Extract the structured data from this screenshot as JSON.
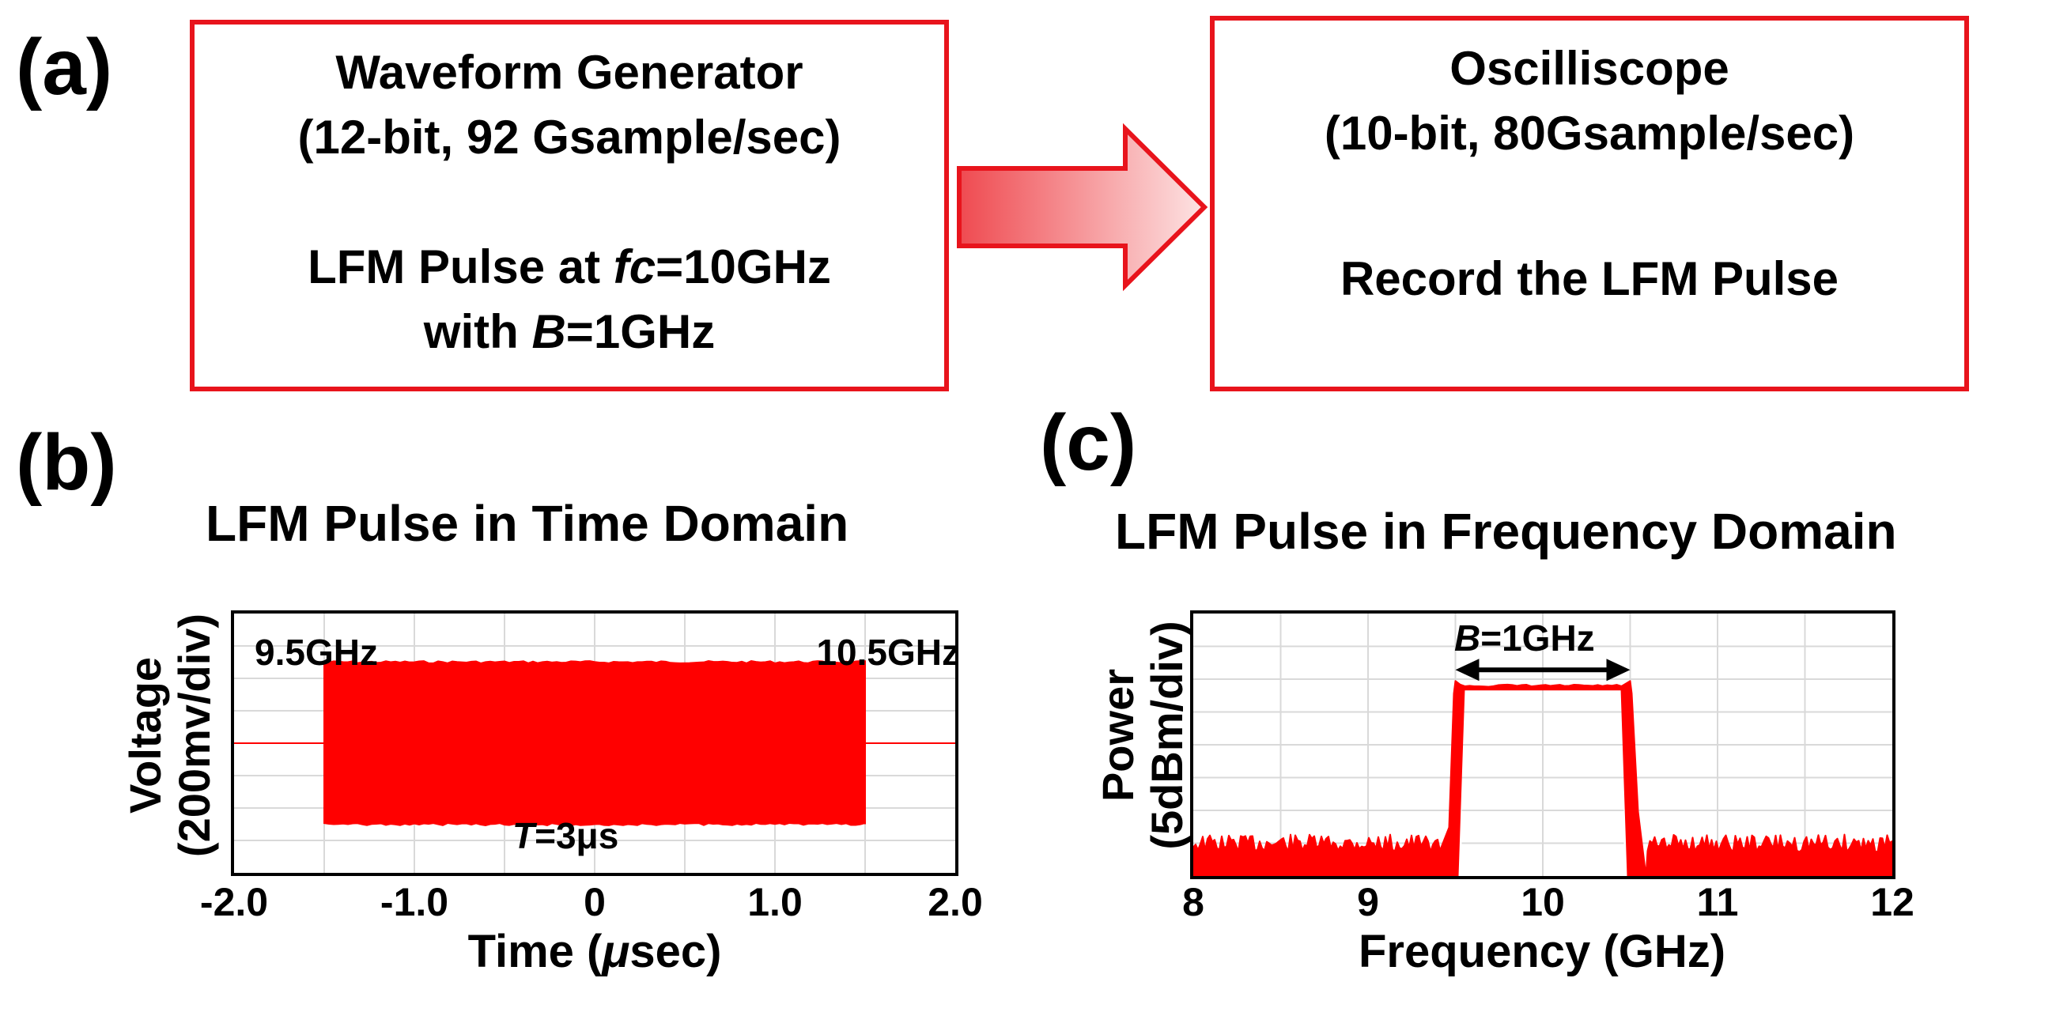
{
  "panel_labels": {
    "a": "(a)",
    "b": "(b)",
    "c": "(c)"
  },
  "generator": {
    "title": "Waveform Generator",
    "spec": "(12-bit, 92 Gsample/sec)",
    "pulse_prefix": "LFM Pulse at ",
    "fc_symbol": "fc",
    "fc_value": "=10GHz",
    "with_text": "with ",
    "b_symbol": "B",
    "b_value": "=1GHz"
  },
  "oscilloscope": {
    "title": "Oscilliscope",
    "spec": "(10-bit, 80Gsample/sec)",
    "action": "Record the LFM Pulse"
  },
  "colors": {
    "accent": "#e8141c",
    "signal": "#ff0000",
    "grid": "#d9d9d9"
  },
  "chart_data": [
    {
      "type": "line",
      "title": "LFM Pulse in Time Domain",
      "xlabel_prefix": "Time (",
      "xlabel_mu": "μ",
      "xlabel_suffix": "sec)",
      "ylabel_line1": "Voltage",
      "ylabel_line2": "(200mv/div)",
      "xlim": [
        -2.0,
        2.0
      ],
      "ylim": [
        -4,
        4
      ],
      "x_ticks": [
        "-2.0",
        "-1.0",
        "0",
        "1.0",
        "2.0"
      ],
      "x_tick_values": [
        -2.0,
        -1.0,
        0,
        1.0,
        2.0
      ],
      "pulse_start": -1.5,
      "pulse_end": 1.5,
      "envelope_top": 2.5,
      "envelope_bottom": -2.5,
      "baseline": 0,
      "annotations": {
        "start_freq": "9.5GHz",
        "end_freq": "10.5GHz",
        "duration_symbol": "T",
        "duration_value": "=3μs"
      }
    },
    {
      "type": "line",
      "title": "LFM Pulse in Frequency Domain",
      "xlabel": "Frequency (GHz)",
      "ylabel_line1": "Power",
      "ylabel_line2": "(5dBm/div)",
      "xlim": [
        8,
        12
      ],
      "ylim": [
        0,
        8
      ],
      "x_ticks": [
        "8",
        "9",
        "10",
        "11",
        "12"
      ],
      "x_tick_values": [
        8,
        9,
        10,
        11,
        12
      ],
      "band_start": 9.5,
      "band_end": 10.5,
      "passband_level": 5.8,
      "noise_floor": 1.0,
      "annotations": {
        "bandwidth_symbol": "B",
        "bandwidth_value": "=1GHz"
      }
    }
  ]
}
